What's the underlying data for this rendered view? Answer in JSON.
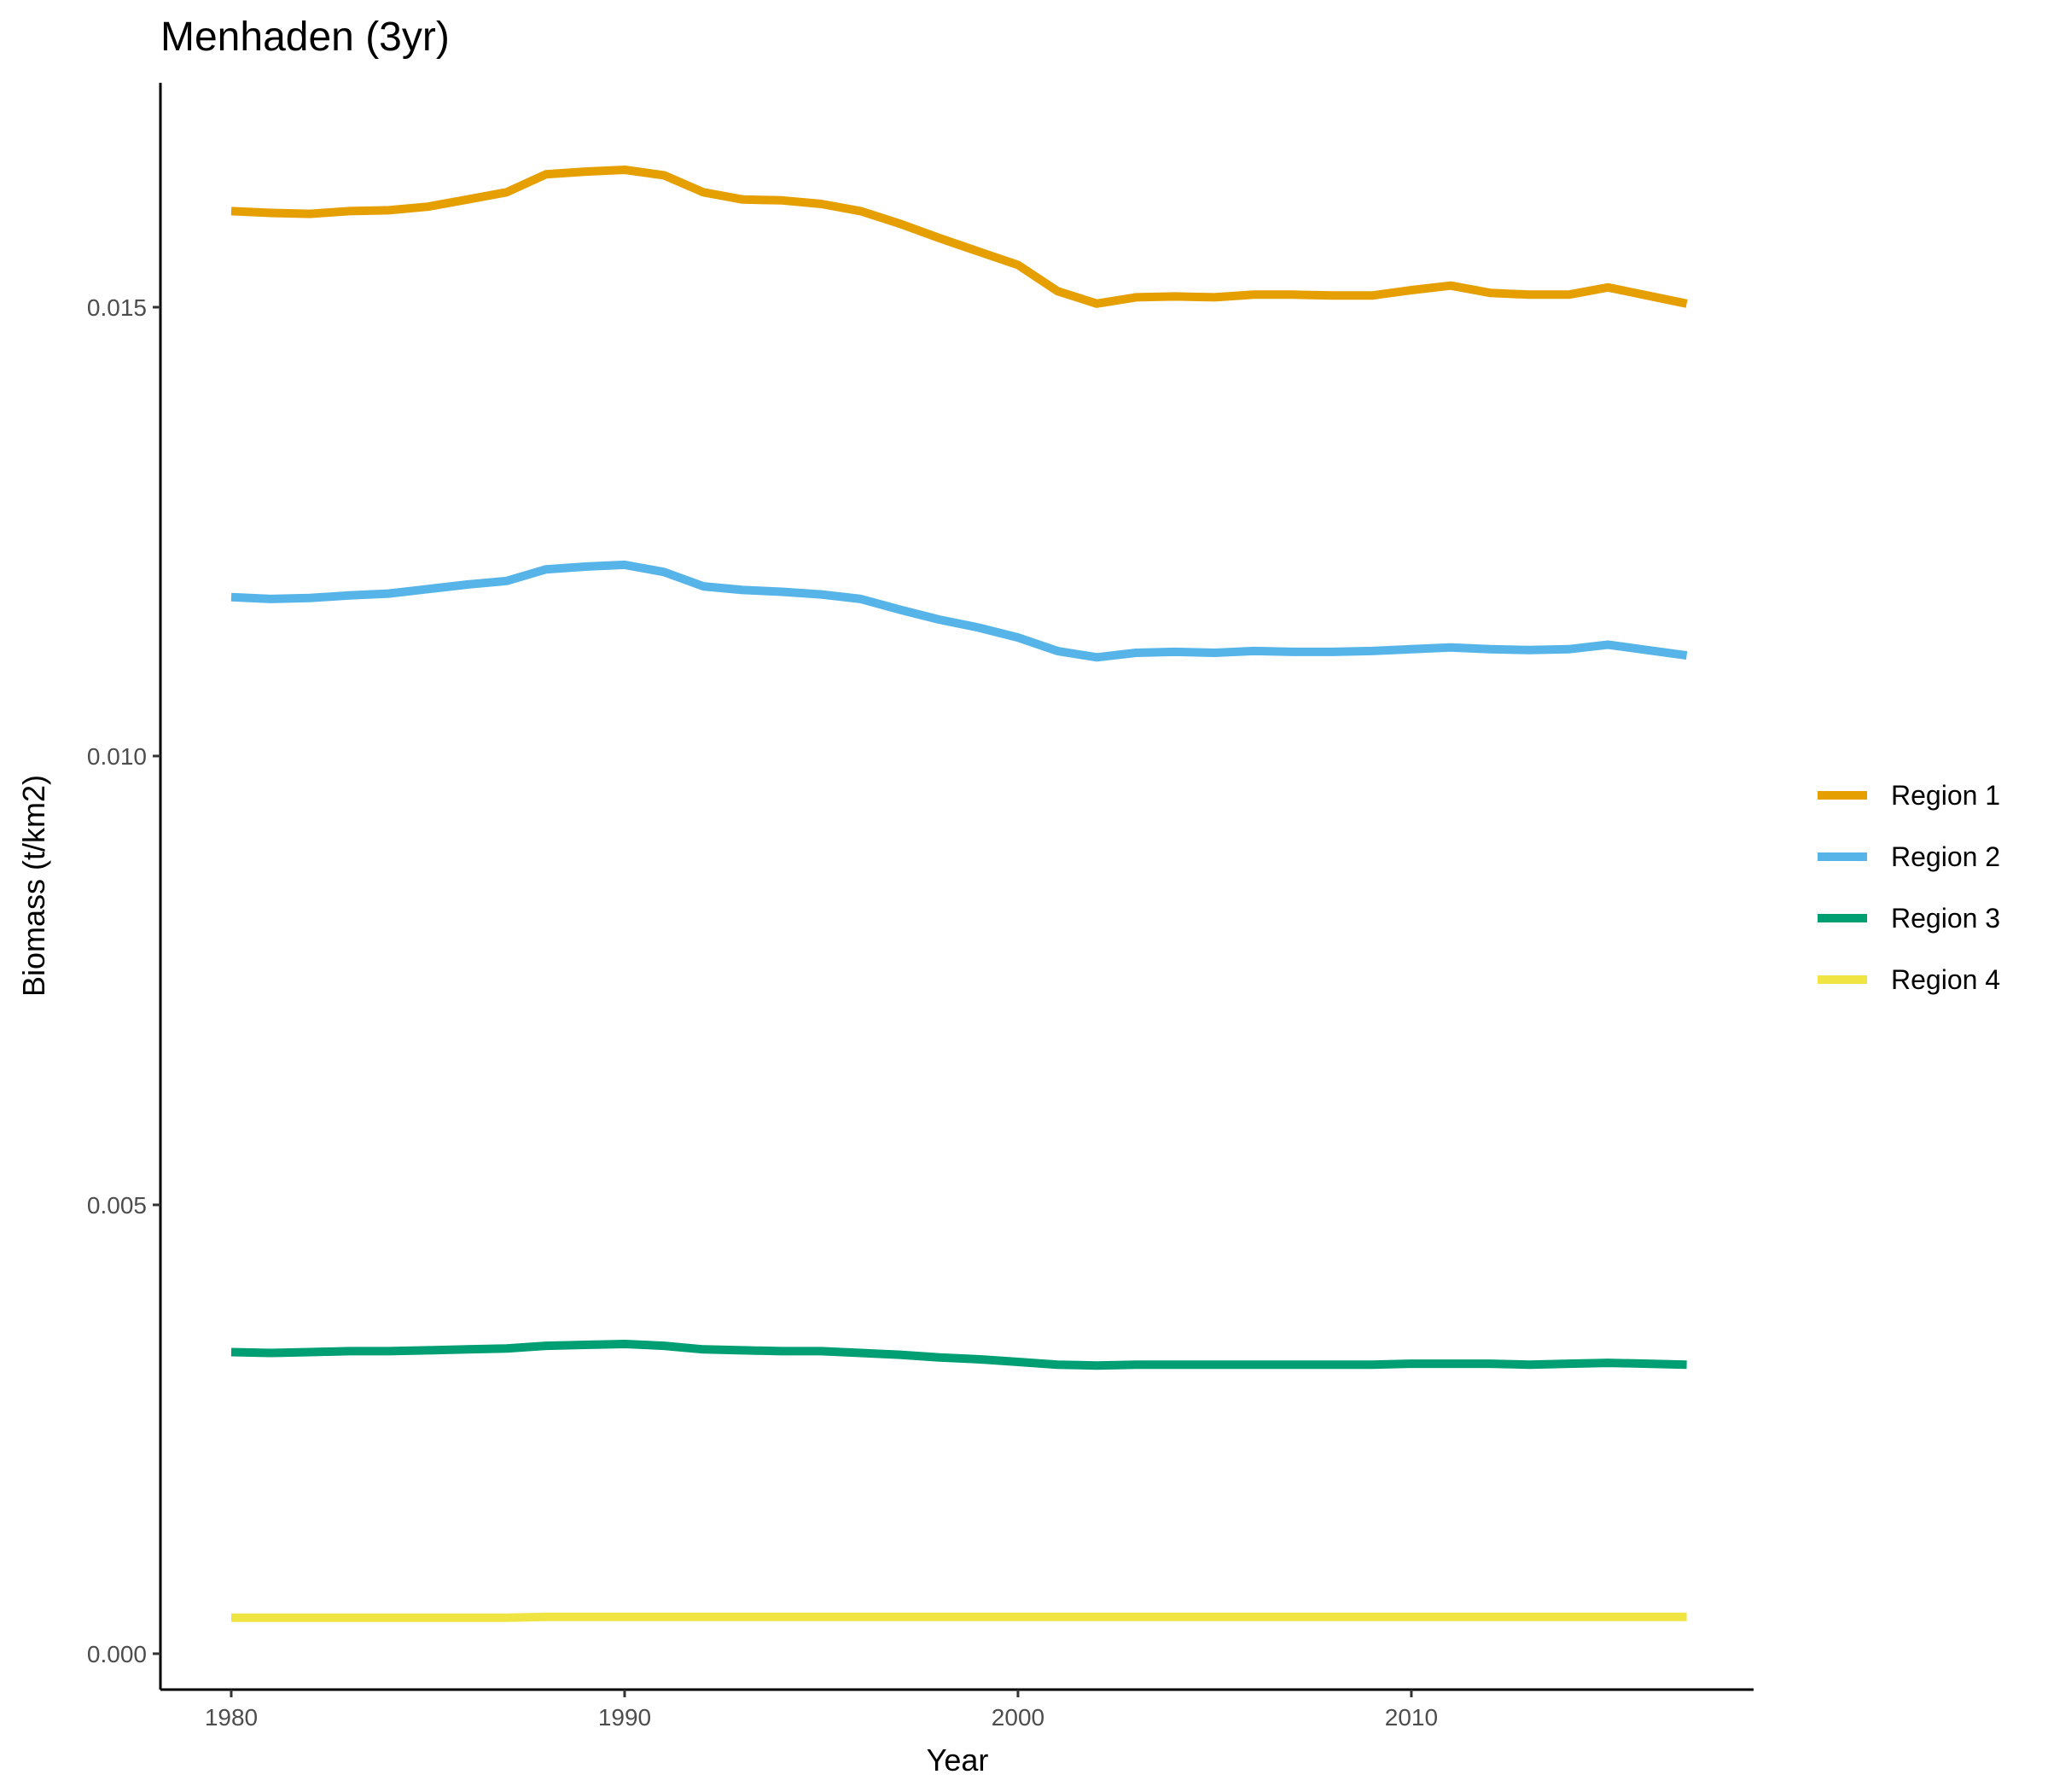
{
  "chart_data": {
    "type": "line",
    "title": "Menhaden (3yr)",
    "xlabel": "Year",
    "ylabel": "Biomass (t/km2)",
    "xlim": [
      1978.2,
      2018.7
    ],
    "ylim": [
      -0.0004,
      0.0175
    ],
    "x_ticks": [
      1980,
      1990,
      2000,
      2010
    ],
    "x_tick_labels": [
      "1980",
      "1990",
      "2000",
      "2010"
    ],
    "y_ticks": [
      0.0,
      0.005,
      0.01,
      0.015
    ],
    "y_tick_labels": [
      "0.000",
      "0.005",
      "0.010",
      "0.015"
    ],
    "grid": false,
    "legend_position": "right",
    "series": [
      {
        "name": "Region 1",
        "color": "#E69F00",
        "x": [
          1980,
          1981,
          1982,
          1983,
          1984,
          1985,
          1986,
          1987,
          1988,
          1989,
          1990,
          1991,
          1992,
          1993,
          1994,
          1995,
          1996,
          1997,
          1998,
          1999,
          2000,
          2001,
          2002,
          2003,
          2004,
          2005,
          2006,
          2007,
          2008,
          2009,
          2010,
          2011,
          2012,
          2013,
          2014,
          2015,
          2016,
          2017
        ],
        "values": [
          0.01607,
          0.01605,
          0.01604,
          0.01607,
          0.01608,
          0.01612,
          0.0162,
          0.01628,
          0.01648,
          0.01651,
          0.01653,
          0.01647,
          0.01628,
          0.0162,
          0.01619,
          0.01615,
          0.01607,
          0.01593,
          0.01577,
          0.01562,
          0.01547,
          0.01518,
          0.01504,
          0.01511,
          0.01512,
          0.01511,
          0.01514,
          0.01514,
          0.01513,
          0.01513,
          0.01519,
          0.01524,
          0.01516,
          0.01514,
          0.01514,
          0.01522,
          0.01513,
          0.01504
        ]
      },
      {
        "name": "Region 2",
        "color": "#56B4E9",
        "x": [
          1980,
          1981,
          1982,
          1983,
          1984,
          1985,
          1986,
          1987,
          1988,
          1989,
          1990,
          1991,
          1992,
          1993,
          1994,
          1995,
          1996,
          1997,
          1998,
          1999,
          2000,
          2001,
          2002,
          2003,
          2004,
          2005,
          2006,
          2007,
          2008,
          2009,
          2010,
          2011,
          2012,
          2013,
          2014,
          2015,
          2016,
          2017
        ],
        "values": [
          0.01177,
          0.01175,
          0.01176,
          0.01179,
          0.01181,
          0.01186,
          0.01191,
          0.01195,
          0.01208,
          0.01211,
          0.01213,
          0.01205,
          0.01189,
          0.01185,
          0.01183,
          0.0118,
          0.01175,
          0.01163,
          0.01152,
          0.01143,
          0.01132,
          0.01117,
          0.0111,
          0.01115,
          0.01116,
          0.01115,
          0.01117,
          0.01116,
          0.01116,
          0.01117,
          0.01119,
          0.01121,
          0.01119,
          0.01118,
          0.01119,
          0.01124,
          0.01118,
          0.01112
        ]
      },
      {
        "name": "Region 3",
        "color": "#009E73",
        "x": [
          1980,
          1981,
          1982,
          1983,
          1984,
          1985,
          1986,
          1987,
          1988,
          1989,
          1990,
          1991,
          1992,
          1993,
          1994,
          1995,
          1996,
          1997,
          1998,
          1999,
          2000,
          2001,
          2002,
          2003,
          2004,
          2005,
          2006,
          2007,
          2008,
          2009,
          2010,
          2011,
          2012,
          2013,
          2014,
          2015,
          2016,
          2017
        ],
        "values": [
          0.00336,
          0.00335,
          0.00336,
          0.00337,
          0.00337,
          0.00338,
          0.00339,
          0.0034,
          0.00343,
          0.00344,
          0.00345,
          0.00343,
          0.00339,
          0.00338,
          0.00337,
          0.00337,
          0.00335,
          0.00333,
          0.0033,
          0.00328,
          0.00325,
          0.00322,
          0.00321,
          0.00322,
          0.00322,
          0.00322,
          0.00322,
          0.00322,
          0.00322,
          0.00322,
          0.00323,
          0.00323,
          0.00323,
          0.00322,
          0.00323,
          0.00324,
          0.00323,
          0.00322
        ]
      },
      {
        "name": "Region 4",
        "color": "#F0E442",
        "x": [
          1980,
          1981,
          1982,
          1983,
          1984,
          1985,
          1986,
          1987,
          1988,
          1989,
          1990,
          1991,
          1992,
          1993,
          1994,
          1995,
          1996,
          1997,
          1998,
          1999,
          2000,
          2001,
          2002,
          2003,
          2004,
          2005,
          2006,
          2007,
          2008,
          2009,
          2010,
          2011,
          2012,
          2013,
          2014,
          2015,
          2016,
          2017
        ],
        "values": [
          0.0004,
          0.0004,
          0.0004,
          0.0004,
          0.0004,
          0.0004,
          0.0004,
          0.0004,
          0.00041,
          0.00041,
          0.00041,
          0.00041,
          0.00041,
          0.00041,
          0.00041,
          0.00041,
          0.00041,
          0.00041,
          0.00041,
          0.00041,
          0.00041,
          0.00041,
          0.00041,
          0.00041,
          0.00041,
          0.00041,
          0.00041,
          0.00041,
          0.00041,
          0.00041,
          0.00041,
          0.00041,
          0.00041,
          0.00041,
          0.00041,
          0.00041,
          0.00041,
          0.00041
        ]
      }
    ]
  }
}
